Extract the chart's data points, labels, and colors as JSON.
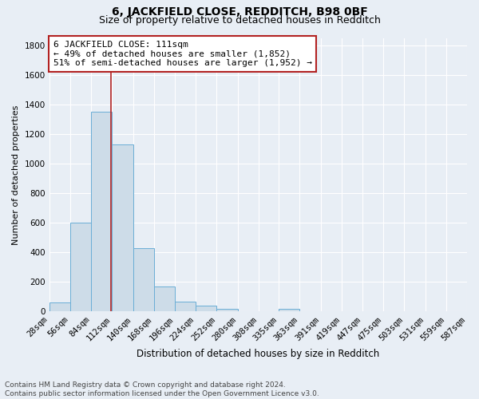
{
  "title1": "6, JACKFIELD CLOSE, REDDITCH, B98 0BF",
  "title2": "Size of property relative to detached houses in Redditch",
  "xlabel": "Distribution of detached houses by size in Redditch",
  "ylabel": "Number of detached properties",
  "bin_left_edges": [
    28,
    56,
    84,
    112,
    140,
    168,
    196,
    224,
    252,
    280,
    308,
    335,
    363,
    391,
    419,
    447,
    475,
    503,
    531,
    559
  ],
  "bin_right_edges": [
    56,
    84,
    112,
    140,
    168,
    196,
    224,
    252,
    280,
    308,
    335,
    363,
    391,
    419,
    447,
    475,
    503,
    531,
    559,
    587
  ],
  "bar_heights": [
    60,
    600,
    1350,
    1130,
    430,
    170,
    65,
    40,
    20,
    0,
    0,
    20,
    0,
    0,
    0,
    0,
    0,
    0,
    0,
    0
  ],
  "bar_color": "#cddce8",
  "bar_edge_color": "#6aaed6",
  "property_size": 111,
  "red_line_color": "#b22222",
  "annotation_line1": "6 JACKFIELD CLOSE: 111sqm",
  "annotation_line2": "← 49% of detached houses are smaller (1,852)",
  "annotation_line3": "51% of semi-detached houses are larger (1,952) →",
  "annotation_box_color": "#ffffff",
  "annotation_border_color": "#b22222",
  "xlim": [
    28,
    587
  ],
  "ylim": [
    0,
    1850
  ],
  "yticks": [
    0,
    200,
    400,
    600,
    800,
    1000,
    1200,
    1400,
    1600,
    1800
  ],
  "xtick_positions": [
    28,
    56,
    84,
    112,
    140,
    168,
    196,
    224,
    252,
    280,
    308,
    335,
    363,
    391,
    419,
    447,
    475,
    503,
    531,
    559,
    587
  ],
  "xtick_labels": [
    "28sqm",
    "56sqm",
    "84sqm",
    "112sqm",
    "140sqm",
    "168sqm",
    "196sqm",
    "224sqm",
    "252sqm",
    "280sqm",
    "308sqm",
    "335sqm",
    "363sqm",
    "391sqm",
    "419sqm",
    "447sqm",
    "475sqm",
    "503sqm",
    "531sqm",
    "559sqm",
    "587sqm"
  ],
  "background_color": "#e8eef5",
  "grid_color": "#ffffff",
  "footer_text": "Contains HM Land Registry data © Crown copyright and database right 2024.\nContains public sector information licensed under the Open Government Licence v3.0.",
  "title1_fontsize": 10,
  "title2_fontsize": 9,
  "xlabel_fontsize": 8.5,
  "ylabel_fontsize": 8,
  "tick_fontsize": 7.5,
  "annotation_fontsize": 8,
  "footer_fontsize": 6.5
}
